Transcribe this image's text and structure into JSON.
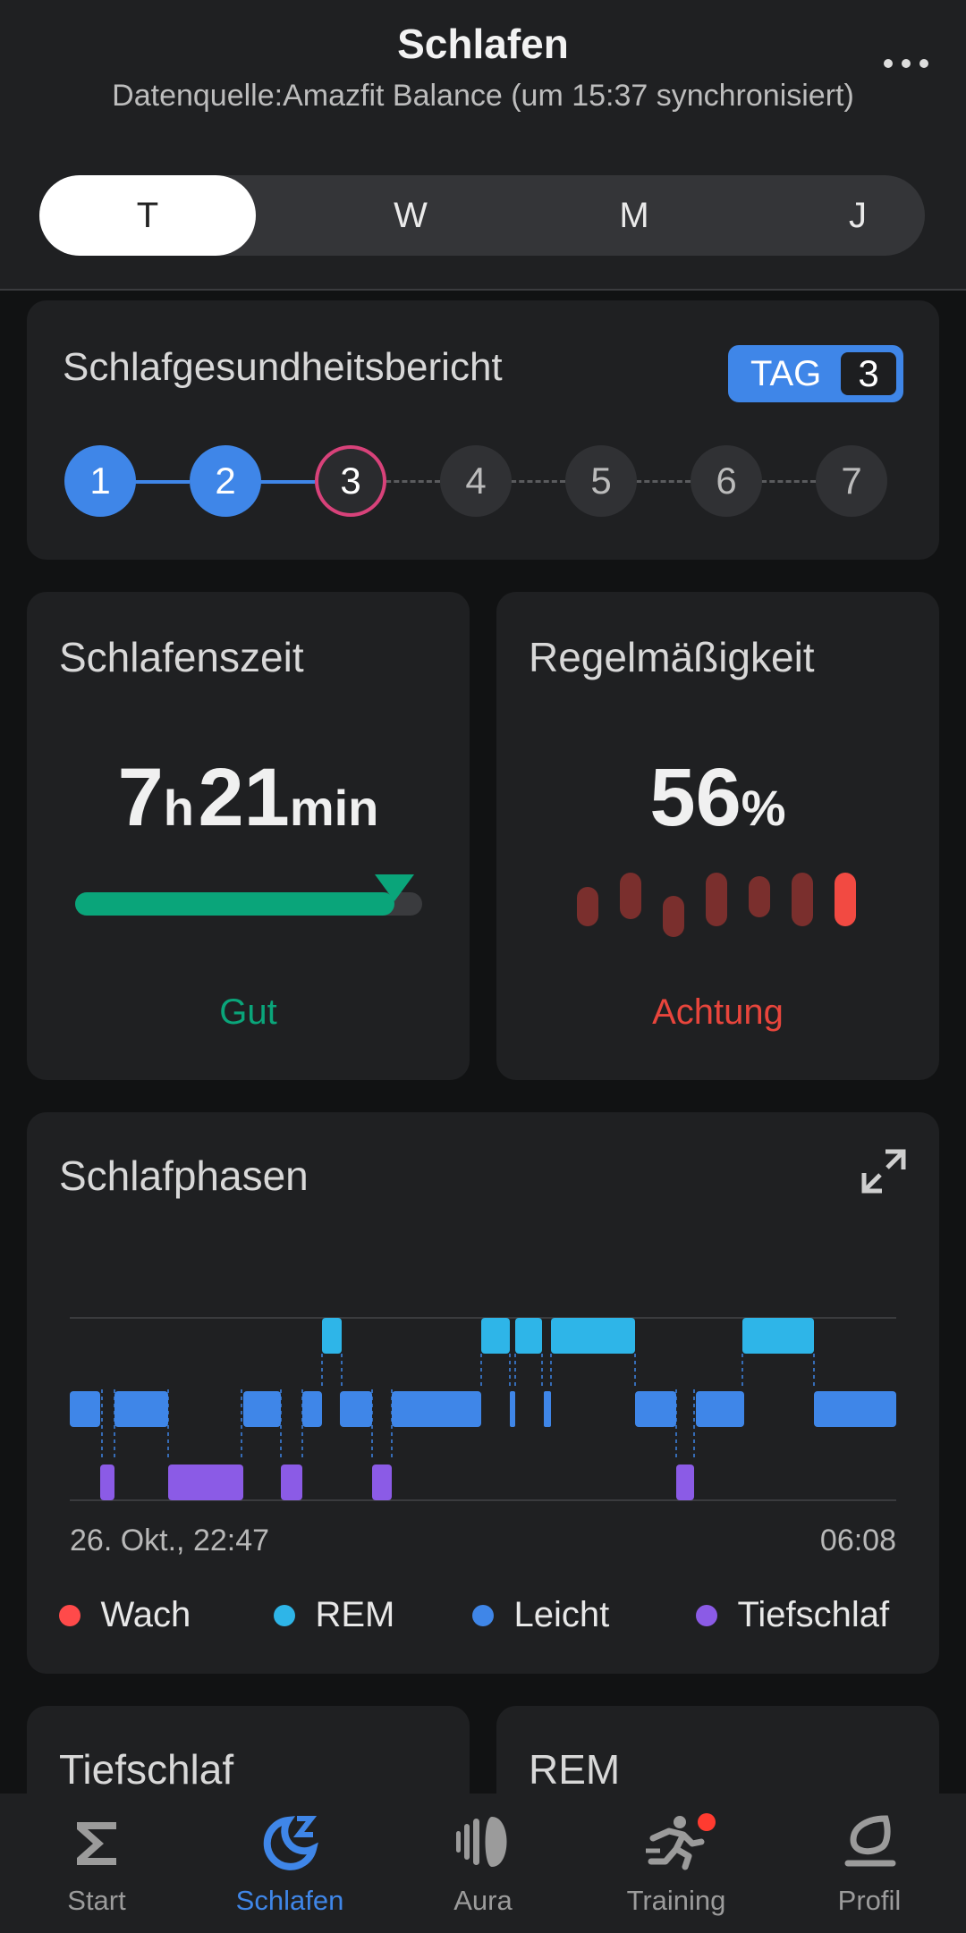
{
  "header": {
    "title": "Schlafen",
    "subtitle": "Datenquelle:Amazfit Balance (um 15:37 synchronisiert)",
    "more_icon": "more-horizontal-icon"
  },
  "period_tabs": [
    {
      "label": "T",
      "active": true
    },
    {
      "label": "W",
      "active": false
    },
    {
      "label": "M",
      "active": false
    },
    {
      "label": "J",
      "active": false
    }
  ],
  "health_report": {
    "title": "Schlafgesundheitsbericht",
    "badge_label": "TAG",
    "badge_value": "3",
    "steps": [
      "1",
      "2",
      "3",
      "4",
      "5",
      "6",
      "7"
    ],
    "current_step": 3
  },
  "sleep_time": {
    "title": "Schlafenszeit",
    "hours": "7",
    "hours_unit": "h",
    "minutes": "21",
    "minutes_unit": "min",
    "status": "Gut",
    "progress_fraction": 0.92,
    "color": "#0aa57a"
  },
  "regularity": {
    "title": "Regelmäßigkeit",
    "value": "56",
    "unit": "%",
    "status": "Achtung",
    "color": "#e8453c"
  },
  "sleep_phases": {
    "title": "Schlafphasen",
    "expand_icon": "expand-icon",
    "start_label": "26. Okt., 22:47",
    "end_label": "06:08",
    "legend": [
      {
        "label": "Wach",
        "color": "#ff4a4a"
      },
      {
        "label": "REM",
        "color": "#2eb5e8"
      },
      {
        "label": "Leicht",
        "color": "#3f86e8"
      },
      {
        "label": "Tiefschlaf",
        "color": "#8b5be6"
      }
    ]
  },
  "next_cards": {
    "left_title": "Tiefschlaf",
    "right_title": "REM"
  },
  "bottom_nav": [
    {
      "label": "Start",
      "icon": "sigma-icon",
      "active": false
    },
    {
      "label": "Schlafen",
      "icon": "moon-sleep-icon",
      "active": true
    },
    {
      "label": "Aura",
      "icon": "aura-icon",
      "active": false
    },
    {
      "label": "Training",
      "icon": "running-icon",
      "active": false
    },
    {
      "label": "Profil",
      "icon": "profile-icon",
      "active": false
    }
  ]
}
